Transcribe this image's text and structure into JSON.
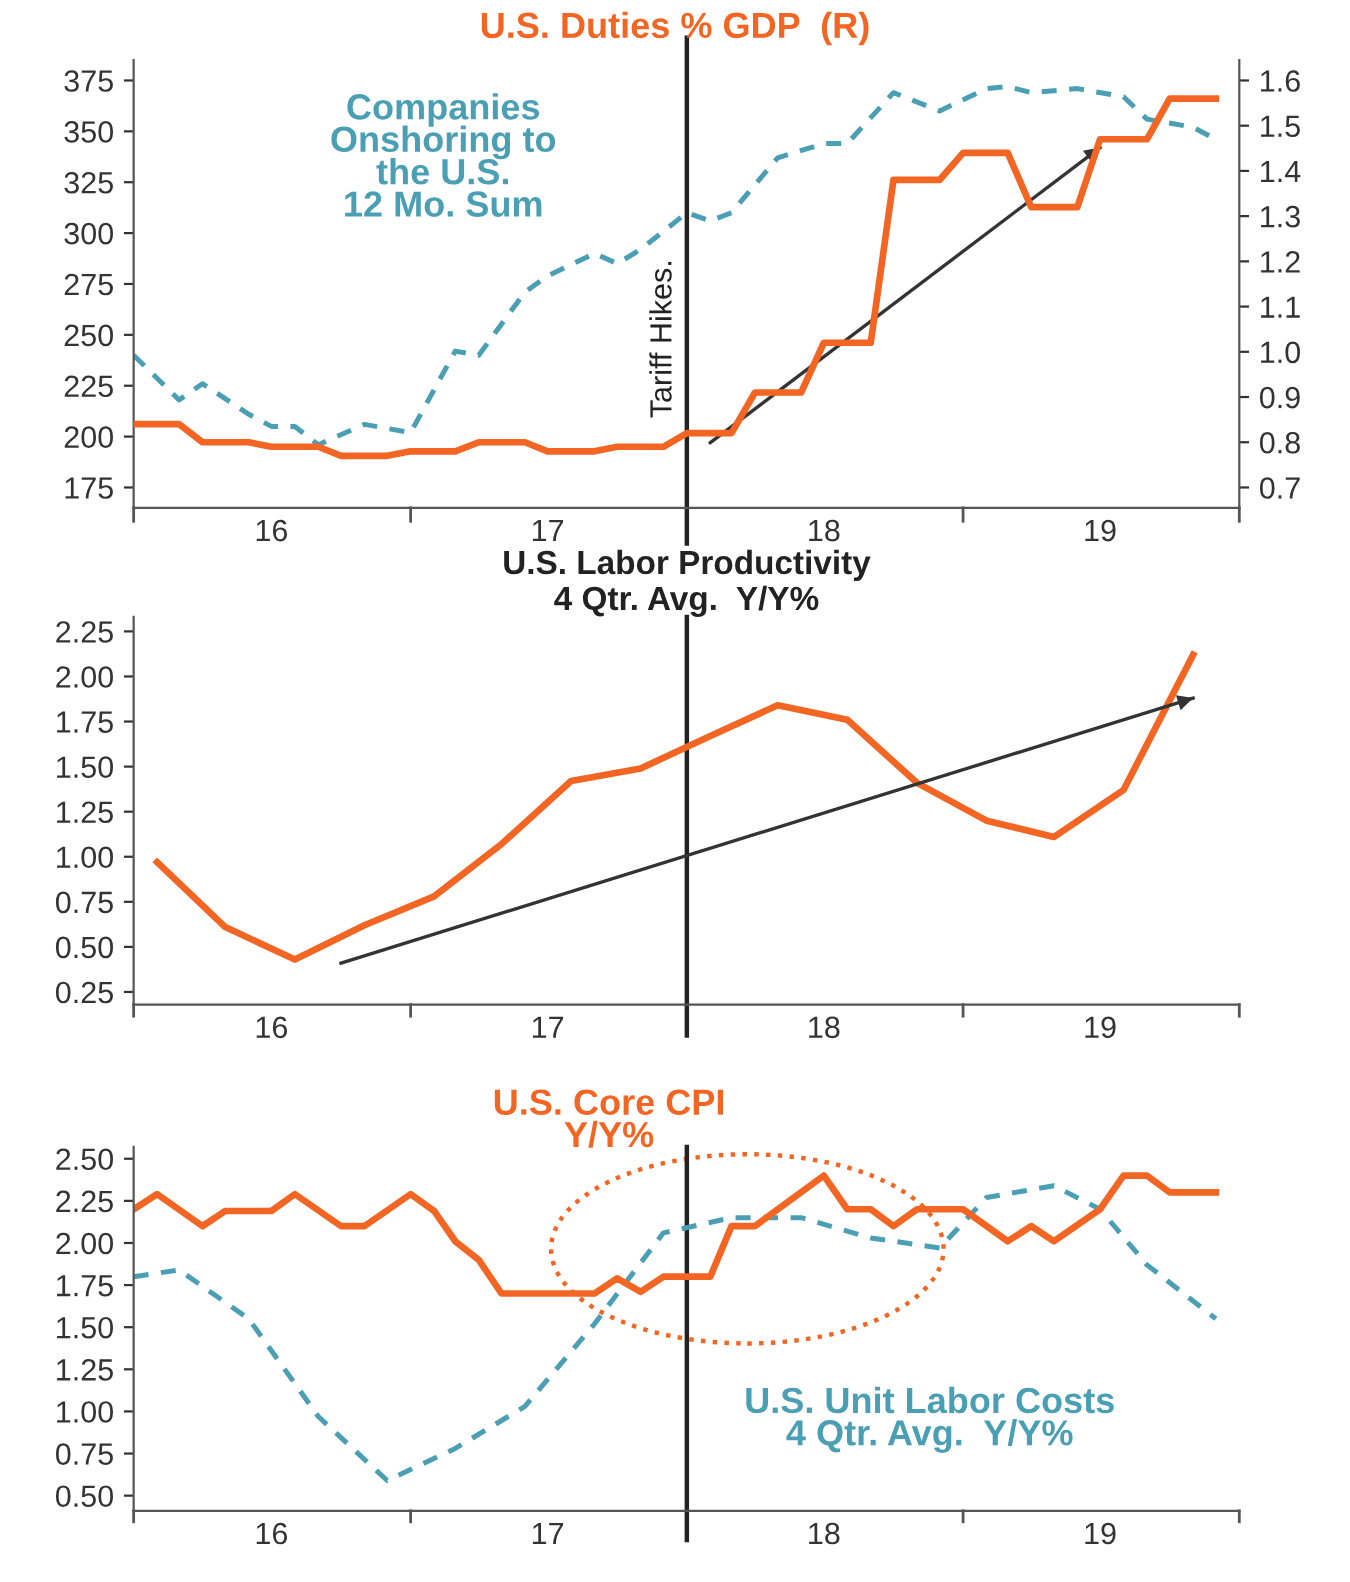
{
  "chart_data": [
    {
      "type": "line",
      "xlim": [
        "2016-01",
        "2020-01"
      ],
      "xticks": [
        {
          "value": "2016-01",
          "label": null
        },
        {
          "value": "2016-07",
          "label": "16"
        },
        {
          "value": "2017-01",
          "label": null
        },
        {
          "value": "2017-07",
          "label": "17"
        },
        {
          "value": "2018-01",
          "label": null
        },
        {
          "value": "2018-07",
          "label": "18"
        },
        {
          "value": "2019-01",
          "label": null
        },
        {
          "value": "2019-07",
          "label": "19"
        },
        {
          "value": "2020-01",
          "label": null
        }
      ],
      "ylim": [
        165,
        385
      ],
      "yticks": [
        175,
        200,
        225,
        250,
        275,
        300,
        325,
        350,
        375
      ],
      "y2lim": [
        0.655,
        1.645
      ],
      "y2ticks": [
        {
          "value": 0.7,
          "label": "0.7"
        },
        {
          "value": 0.8,
          "label": "0.8"
        },
        {
          "value": 0.9,
          "label": "0.9"
        },
        {
          "value": 1.0,
          "label": "1.0"
        },
        {
          "value": 1.1,
          "label": "1.1"
        },
        {
          "value": 1.2,
          "label": "1.2"
        },
        {
          "value": 1.3,
          "label": "1.3"
        },
        {
          "value": 1.4,
          "label": "1.4"
        },
        {
          "value": 1.5,
          "label": "1.5"
        },
        {
          "value": 1.6,
          "label": "1.6"
        }
      ],
      "grid": false,
      "legend": false,
      "ref_lines": [
        {
          "axis": "x",
          "value": "2018-01",
          "label": "Tariff Hikes.",
          "color": "#222222"
        }
      ],
      "series": [
        {
          "name": "Companies\nOnshoring to\nthe U.S.\n12 Mo. Sum",
          "color": "#4a9fb5",
          "line_style": "dashed",
          "x": [
            "2016-01",
            "2016-03",
            "2016-04",
            "2016-06",
            "2016-07",
            "2016-08",
            "2016-09",
            "2016-11",
            "2016-12",
            "2017-01",
            "2017-03",
            "2017-04",
            "2017-06",
            "2017-07",
            "2017-09",
            "2017-10",
            "2017-11",
            "2018-01",
            "2018-02",
            "2018-03",
            "2018-05",
            "2018-07",
            "2018-08",
            "2018-10",
            "2018-12",
            "2019-02",
            "2019-03",
            "2019-04",
            "2019-06",
            "2019-08",
            "2019-09",
            "2019-11",
            "2019-12"
          ],
          "values": [
            240,
            218,
            226,
            211,
            205,
            205,
            196,
            206,
            204,
            202,
            242,
            240,
            271,
            279,
            290,
            285,
            292,
            310,
            306,
            310,
            337,
            344,
            344,
            369,
            360,
            371,
            372,
            369,
            371,
            367,
            356,
            352,
            346
          ]
        },
        {
          "name": "U.S. Duties % GDP  (R)",
          "color": "#f26522",
          "line_style": "solid",
          "axis": "y2",
          "x": [
            "2016-01",
            "2016-03",
            "2016-04",
            "2016-06",
            "2016-07",
            "2016-09",
            "2016-10",
            "2016-12",
            "2017-01",
            "2017-03",
            "2017-04",
            "2017-06",
            "2017-07",
            "2017-09",
            "2017-10",
            "2017-12",
            "2018-01",
            "2018-03",
            "2018-04",
            "2018-06",
            "2018-07",
            "2018-09",
            "2018-10",
            "2018-12",
            "2019-01",
            "2019-03",
            "2019-04",
            "2019-06",
            "2019-07",
            "2019-09",
            "2019-10",
            "2019-12"
          ],
          "values": [
            0.84,
            0.84,
            0.8,
            0.8,
            0.79,
            0.79,
            0.77,
            0.77,
            0.78,
            0.78,
            0.8,
            0.8,
            0.78,
            0.78,
            0.79,
            0.79,
            0.82,
            0.82,
            0.91,
            0.91,
            1.02,
            1.02,
            1.38,
            1.38,
            1.44,
            1.44,
            1.32,
            1.32,
            1.47,
            1.47,
            1.56,
            1.56
          ]
        },
        {
          "type": "line",
          "color": "#333333",
          "line_style": "solid",
          "x": [
            "2018-02",
            "2019-07"
          ],
          "values": [
            197,
            342
          ]
        }
      ]
    },
    {
      "type": "line",
      "title": "U.S. Labor Productivity\n4 Qtr. Avg.  Y/Y%",
      "xlim": [
        "2016-01",
        "2020-01"
      ],
      "xticks": [
        {
          "value": "2016-01",
          "label": null
        },
        {
          "value": "2016-07",
          "label": "16"
        },
        {
          "value": "2017-01",
          "label": null
        },
        {
          "value": "2017-07",
          "label": "17"
        },
        {
          "value": "2018-01",
          "label": null
        },
        {
          "value": "2018-07",
          "label": "18"
        },
        {
          "value": "2019-01",
          "label": null
        },
        {
          "value": "2019-07",
          "label": "19"
        },
        {
          "value": "2020-01",
          "label": null
        }
      ],
      "ylim": [
        0.18,
        2.33
      ],
      "yticks": [
        {
          "value": 0.25,
          "label": "0.25"
        },
        {
          "value": 0.5,
          "label": "0.50"
        },
        {
          "value": 0.75,
          "label": "0.75"
        },
        {
          "value": 1.0,
          "label": "1.00"
        },
        {
          "value": 1.25,
          "label": "1.25"
        },
        {
          "value": 1.5,
          "label": "1.50"
        },
        {
          "value": 1.75,
          "label": "1.75"
        },
        {
          "value": 2.0,
          "label": "2.00"
        },
        {
          "value": 2.25,
          "label": "2.25"
        }
      ],
      "grid": false,
      "legend": false,
      "ref_lines": [
        {
          "axis": "x",
          "value": "2018-01",
          "color": "#222222"
        }
      ],
      "series": [
        {
          "color": "#f26522",
          "line_style": "solid",
          "x": [
            "2016-02",
            "2016-05",
            "2016-08",
            "2016-11",
            "2017-02",
            "2017-05",
            "2017-08",
            "2017-11",
            "2018-02",
            "2018-05",
            "2018-08",
            "2018-11",
            "2019-02",
            "2019-05",
            "2019-08",
            "2019-11"
          ],
          "values": [
            0.97,
            0.61,
            0.43,
            0.62,
            0.78,
            1.07,
            1.42,
            1.49,
            1.67,
            1.84,
            1.76,
            1.41,
            1.2,
            1.11,
            1.37,
            2.12
          ]
        },
        {
          "type": "line",
          "color": "#333333",
          "line_style": "solid",
          "x": [
            "2016-10",
            "2019-11"
          ],
          "values": [
            0.41,
            1.88
          ]
        }
      ]
    },
    {
      "type": "line",
      "xlim": [
        "2016-01",
        "2020-01"
      ],
      "xticks": [
        {
          "value": "2016-01",
          "label": null
        },
        {
          "value": "2016-07",
          "label": "16"
        },
        {
          "value": "2017-01",
          "label": null
        },
        {
          "value": "2017-07",
          "label": "17"
        },
        {
          "value": "2018-01",
          "label": null
        },
        {
          "value": "2018-07",
          "label": "18"
        },
        {
          "value": "2019-01",
          "label": null
        },
        {
          "value": "2019-07",
          "label": "19"
        },
        {
          "value": "2020-01",
          "label": null
        }
      ],
      "ylim": [
        0.41,
        2.57
      ],
      "yticks": [
        {
          "value": 0.5,
          "label": "0.50"
        },
        {
          "value": 0.75,
          "label": "0.75"
        },
        {
          "value": 1.0,
          "label": "1.00"
        },
        {
          "value": 1.25,
          "label": "1.25"
        },
        {
          "value": 1.5,
          "label": "1.50"
        },
        {
          "value": 1.75,
          "label": "1.75"
        },
        {
          "value": 2.0,
          "label": "2.00"
        },
        {
          "value": 2.25,
          "label": "2.25"
        },
        {
          "value": 2.5,
          "label": "2.50"
        }
      ],
      "grid": false,
      "legend": false,
      "ref_lines": [
        {
          "axis": "x",
          "value": "2018-01",
          "color": "#222222"
        }
      ],
      "series": [
        {
          "name": "U.S. Unit Labor Costs\n4 Qtr. Avg.  Y/Y%",
          "color": "#4a9fb5",
          "line_style": "dashed",
          "x": [
            "2016-01",
            "2016-03",
            "2016-06",
            "2016-09",
            "2016-12",
            "2017-03",
            "2017-06",
            "2017-09",
            "2017-12",
            "2018-03",
            "2018-06",
            "2018-09",
            "2018-12",
            "2019-02",
            "2019-05",
            "2019-07",
            "2019-09",
            "2019-12"
          ],
          "values": [
            1.8,
            1.84,
            1.55,
            0.97,
            0.59,
            0.78,
            1.03,
            1.52,
            2.06,
            2.15,
            2.15,
            2.03,
            1.97,
            2.27,
            2.34,
            2.2,
            1.87,
            1.55
          ]
        },
        {
          "name": "U.S. Core CPI\nY/Y%",
          "color": "#f26522",
          "line_style": "solid",
          "x": [
            "2016-01",
            "2016-02",
            "2016-04",
            "2016-05",
            "2016-07",
            "2016-08",
            "2016-10",
            "2016-11",
            "2017-01",
            "2017-02",
            "2017-03",
            "2017-04",
            "2017-05",
            "2017-09",
            "2017-10",
            "2017-11",
            "2017-12",
            "2018-02",
            "2018-03",
            "2018-04",
            "2018-07",
            "2018-08",
            "2018-09",
            "2018-10",
            "2018-11",
            "2019-01",
            "2019-03",
            "2019-04",
            "2019-05",
            "2019-07",
            "2019-08",
            "2019-09",
            "2019-10",
            "2019-12"
          ],
          "values": [
            2.2,
            2.29,
            2.1,
            2.19,
            2.19,
            2.29,
            2.1,
            2.1,
            2.29,
            2.19,
            2.01,
            1.9,
            1.7,
            1.7,
            1.79,
            1.71,
            1.8,
            1.8,
            2.1,
            2.1,
            2.4,
            2.2,
            2.2,
            2.1,
            2.2,
            2.2,
            2.01,
            2.1,
            2.01,
            2.2,
            2.4,
            2.4,
            2.3,
            2.3
          ]
        }
      ]
    }
  ]
}
